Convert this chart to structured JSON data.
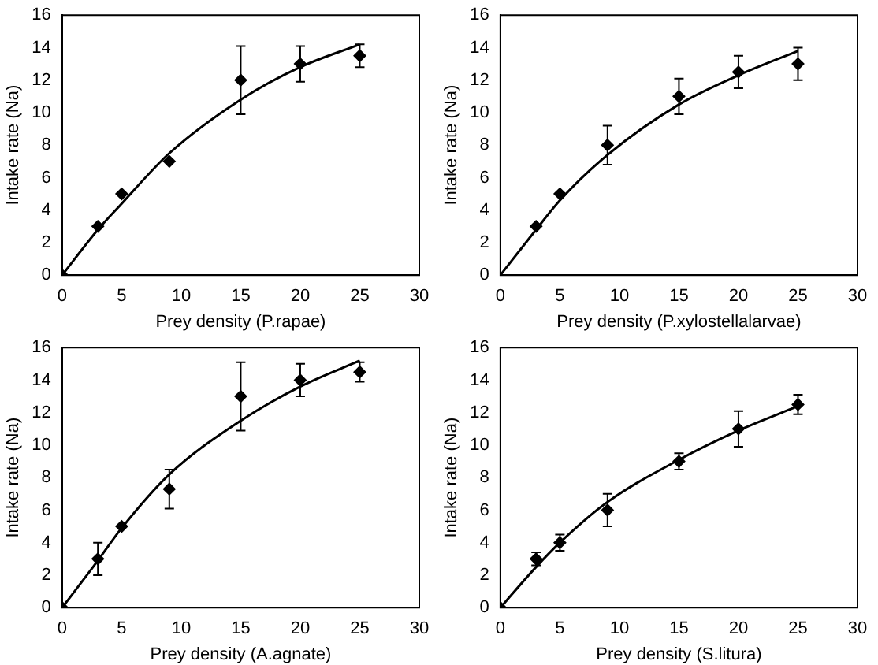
{
  "chart_data": [
    {
      "type": "scatter",
      "xlabel": "Prey density (P.rapae)",
      "ylabel": "Intake rate (Na)",
      "xlim": [
        0,
        30
      ],
      "xticks": [
        0,
        5,
        10,
        15,
        20,
        25,
        30
      ],
      "ylim": [
        0,
        16
      ],
      "yticks": [
        0,
        2,
        4,
        6,
        8,
        10,
        12,
        14,
        16
      ],
      "grid": false,
      "legend": false,
      "series": [
        {
          "marker": "diamond",
          "color": "#000000",
          "x": [
            0,
            3,
            5,
            9,
            15,
            20,
            25
          ],
          "values": [
            0,
            3,
            5,
            7,
            12,
            13,
            13.5
          ],
          "errors": [
            null,
            null,
            null,
            null,
            2.1,
            1.1,
            0.7
          ]
        },
        {
          "type": "line",
          "color": "#000000",
          "x": [
            0,
            3,
            5,
            9,
            15,
            20,
            25
          ],
          "values": [
            0,
            2.8,
            4.4,
            7.5,
            10.8,
            12.8,
            14.2
          ]
        }
      ]
    },
    {
      "type": "scatter",
      "xlabel": "Prey density (P.xylostellalarvae)",
      "ylabel": "Intake rate (Na)",
      "xlim": [
        0,
        30
      ],
      "xticks": [
        0,
        5,
        10,
        15,
        20,
        25,
        30
      ],
      "ylim": [
        0,
        16
      ],
      "yticks": [
        0,
        2,
        4,
        6,
        8,
        10,
        12,
        14,
        16
      ],
      "grid": false,
      "legend": false,
      "series": [
        {
          "marker": "diamond",
          "color": "#000000",
          "x": [
            3,
            5,
            9,
            15,
            20,
            25
          ],
          "values": [
            3,
            5,
            8,
            11,
            12.5,
            13
          ],
          "errors": [
            null,
            null,
            1.2,
            1.1,
            1,
            1
          ]
        },
        {
          "type": "line",
          "color": "#000000",
          "x": [
            0,
            3,
            5,
            9,
            15,
            20,
            25
          ],
          "values": [
            0,
            2.8,
            4.6,
            7.4,
            10.5,
            12.3,
            13.8
          ]
        }
      ]
    },
    {
      "type": "scatter",
      "xlabel": "Prey density (A.agnate)",
      "ylabel": "Intake rate (Na)",
      "xlim": [
        0,
        30
      ],
      "xticks": [
        0,
        5,
        10,
        15,
        20,
        25,
        30
      ],
      "ylim": [
        0,
        16
      ],
      "yticks": [
        0,
        2,
        4,
        6,
        8,
        10,
        12,
        14,
        16
      ],
      "grid": false,
      "legend": false,
      "series": [
        {
          "marker": "diamond",
          "color": "#000000",
          "x": [
            0,
            3,
            5,
            9,
            15,
            20,
            25
          ],
          "values": [
            0,
            3,
            5,
            7.3,
            13,
            14,
            14.5
          ],
          "errors": [
            null,
            1,
            null,
            1.2,
            2.1,
            1,
            0.6
          ]
        },
        {
          "type": "line",
          "color": "#000000",
          "x": [
            0,
            3,
            5,
            9,
            15,
            20,
            25
          ],
          "values": [
            0,
            2.9,
            4.9,
            8.2,
            11.5,
            13.6,
            15.2
          ]
        }
      ]
    },
    {
      "type": "scatter",
      "xlabel": "Prey density (S.litura)",
      "ylabel": "Intake rate (Na)",
      "xlim": [
        0,
        30
      ],
      "xticks": [
        0,
        5,
        10,
        15,
        20,
        25,
        30
      ],
      "ylim": [
        0,
        16
      ],
      "yticks": [
        0,
        2,
        4,
        6,
        8,
        10,
        12,
        14,
        16
      ],
      "grid": false,
      "legend": false,
      "series": [
        {
          "marker": "diamond",
          "color": "#000000",
          "x": [
            0,
            3,
            5,
            9,
            15,
            20,
            25
          ],
          "values": [
            0,
            3,
            4,
            6,
            9,
            11,
            12.5
          ],
          "errors": [
            null,
            0.4,
            0.5,
            1,
            0.5,
            1.1,
            0.6
          ]
        },
        {
          "type": "line",
          "color": "#000000",
          "x": [
            0,
            3,
            5,
            9,
            15,
            20,
            25
          ],
          "values": [
            0,
            2.5,
            4,
            6.5,
            9.1,
            10.9,
            12.4
          ]
        }
      ]
    }
  ]
}
